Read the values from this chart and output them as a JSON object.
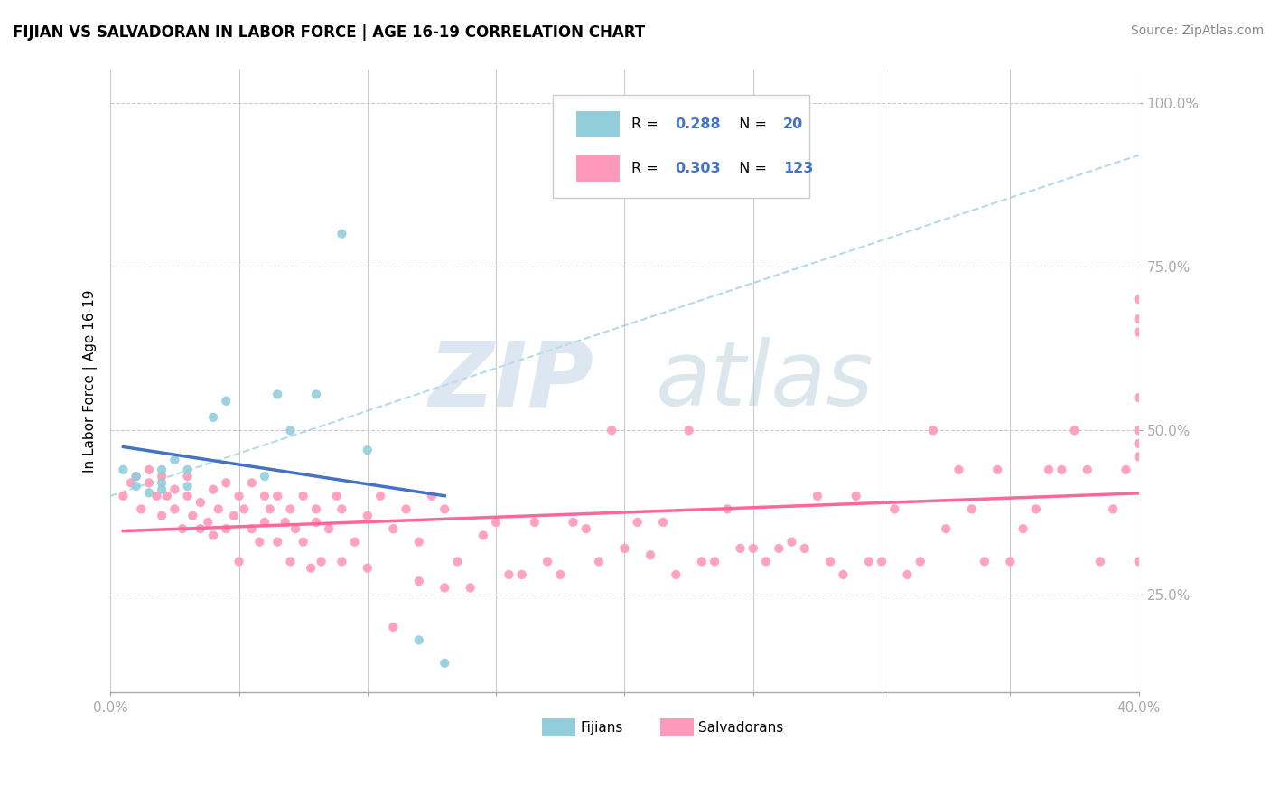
{
  "title": "FIJIAN VS SALVADORAN IN LABOR FORCE | AGE 16-19 CORRELATION CHART",
  "source": "Source: ZipAtlas.com",
  "ylabel": "In Labor Force | Age 16-19",
  "xlim": [
    0.0,
    0.4
  ],
  "ylim": [
    0.1,
    1.05
  ],
  "ytick_vals": [
    0.25,
    0.5,
    0.75,
    1.0
  ],
  "ytick_labels": [
    "25.0%",
    "50.0%",
    "75.0%",
    "100.0%"
  ],
  "xtick_vals": [
    0.0,
    0.05,
    0.1,
    0.15,
    0.2,
    0.25,
    0.3,
    0.35,
    0.4
  ],
  "xtick_labels": [
    "0.0%",
    "",
    "",
    "",
    "",
    "",
    "",
    "",
    "40.0%"
  ],
  "fijian_color": "#92CDDC",
  "salvadoran_color": "#FF99BB",
  "fijian_line_color": "#4472C4",
  "salvadoran_line_color": "#FF6699",
  "dashed_line_color": "#92CDDC",
  "fijian_R": 0.288,
  "fijian_N": 20,
  "salvadoran_R": 0.303,
  "salvadoran_N": 123,
  "fijian_x": [
    0.005,
    0.01,
    0.01,
    0.015,
    0.02,
    0.02,
    0.02,
    0.025,
    0.03,
    0.03,
    0.04,
    0.045,
    0.06,
    0.065,
    0.07,
    0.08,
    0.09,
    0.1,
    0.12,
    0.13
  ],
  "fijian_y": [
    0.44,
    0.415,
    0.43,
    0.405,
    0.41,
    0.42,
    0.44,
    0.455,
    0.415,
    0.44,
    0.52,
    0.545,
    0.43,
    0.555,
    0.5,
    0.555,
    0.8,
    0.47,
    0.18,
    0.145
  ],
  "salvadoran_x": [
    0.005,
    0.008,
    0.01,
    0.012,
    0.015,
    0.015,
    0.018,
    0.02,
    0.02,
    0.022,
    0.025,
    0.025,
    0.028,
    0.03,
    0.03,
    0.032,
    0.035,
    0.035,
    0.038,
    0.04,
    0.04,
    0.042,
    0.045,
    0.045,
    0.048,
    0.05,
    0.05,
    0.052,
    0.055,
    0.055,
    0.058,
    0.06,
    0.06,
    0.062,
    0.065,
    0.065,
    0.068,
    0.07,
    0.07,
    0.072,
    0.075,
    0.075,
    0.078,
    0.08,
    0.08,
    0.082,
    0.085,
    0.088,
    0.09,
    0.09,
    0.095,
    0.1,
    0.1,
    0.105,
    0.11,
    0.11,
    0.115,
    0.12,
    0.12,
    0.125,
    0.13,
    0.13,
    0.135,
    0.14,
    0.145,
    0.15,
    0.155,
    0.16,
    0.165,
    0.17,
    0.175,
    0.18,
    0.185,
    0.19,
    0.195,
    0.2,
    0.205,
    0.21,
    0.215,
    0.22,
    0.225,
    0.23,
    0.235,
    0.24,
    0.245,
    0.25,
    0.255,
    0.26,
    0.265,
    0.27,
    0.275,
    0.28,
    0.285,
    0.29,
    0.295,
    0.3,
    0.305,
    0.31,
    0.315,
    0.32,
    0.325,
    0.33,
    0.335,
    0.34,
    0.345,
    0.35,
    0.355,
    0.36,
    0.365,
    0.37,
    0.375,
    0.38,
    0.385,
    0.39,
    0.395,
    0.4,
    0.4,
    0.4,
    0.4,
    0.4,
    0.4,
    0.4,
    0.4
  ],
  "salvadoran_y": [
    0.4,
    0.42,
    0.43,
    0.38,
    0.42,
    0.44,
    0.4,
    0.37,
    0.43,
    0.4,
    0.38,
    0.41,
    0.35,
    0.4,
    0.43,
    0.37,
    0.35,
    0.39,
    0.36,
    0.34,
    0.41,
    0.38,
    0.35,
    0.42,
    0.37,
    0.3,
    0.4,
    0.38,
    0.35,
    0.42,
    0.33,
    0.36,
    0.4,
    0.38,
    0.33,
    0.4,
    0.36,
    0.38,
    0.3,
    0.35,
    0.33,
    0.4,
    0.29,
    0.38,
    0.36,
    0.3,
    0.35,
    0.4,
    0.3,
    0.38,
    0.33,
    0.29,
    0.37,
    0.4,
    0.2,
    0.35,
    0.38,
    0.27,
    0.33,
    0.4,
    0.26,
    0.38,
    0.3,
    0.26,
    0.34,
    0.36,
    0.28,
    0.28,
    0.36,
    0.3,
    0.28,
    0.36,
    0.35,
    0.3,
    0.5,
    0.32,
    0.36,
    0.31,
    0.36,
    0.28,
    0.5,
    0.3,
    0.3,
    0.38,
    0.32,
    0.32,
    0.3,
    0.32,
    0.33,
    0.32,
    0.4,
    0.3,
    0.28,
    0.4,
    0.3,
    0.3,
    0.38,
    0.28,
    0.3,
    0.5,
    0.35,
    0.44,
    0.38,
    0.3,
    0.44,
    0.3,
    0.35,
    0.38,
    0.44,
    0.44,
    0.5,
    0.44,
    0.3,
    0.38,
    0.44,
    0.46,
    0.48,
    0.5,
    0.55,
    0.65,
    0.3,
    0.67,
    0.7
  ]
}
